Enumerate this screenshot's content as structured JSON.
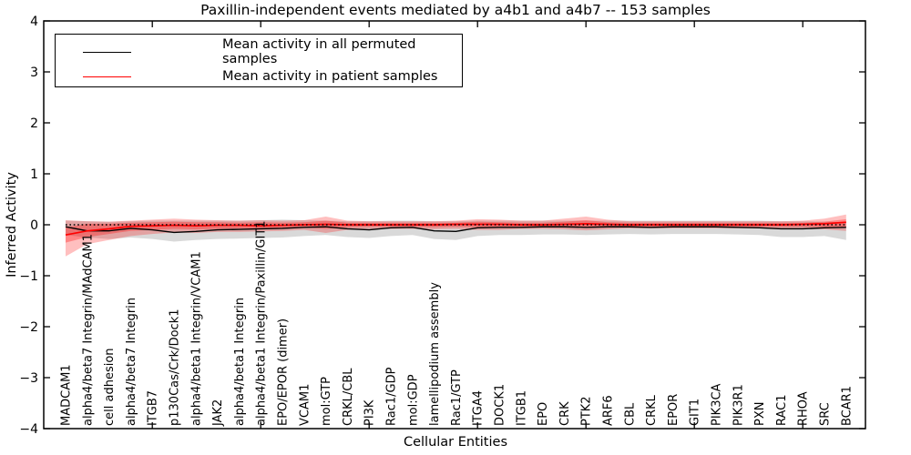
{
  "figure": {
    "title": "Paxillin-independent events mediated by a4b1 and a4b7 -- 153 samples",
    "x_axis_label": "Cellular Entities",
    "y_axis_label": "Inferred Activity"
  },
  "legend": {
    "position": "upper left",
    "items": [
      {
        "label": "Mean activity in all permuted samples",
        "color": "#000000"
      },
      {
        "label": "Mean activity in patient samples",
        "color": "#ff0000"
      }
    ]
  },
  "y_ticks": [
    {
      "label": "4",
      "value": 4
    },
    {
      "label": "3",
      "value": 3
    },
    {
      "label": "2",
      "value": 2
    },
    {
      "label": "1",
      "value": 1
    },
    {
      "label": "0",
      "value": 0
    },
    {
      "label": "−1",
      "value": -1
    },
    {
      "label": "−2",
      "value": -2
    },
    {
      "label": "−3",
      "value": -3
    },
    {
      "label": "−4",
      "value": -4
    }
  ],
  "chart_data": {
    "type": "line",
    "title": "Paxillin-independent events mediated by a4b1 and a4b7 -- 153 samples",
    "xlabel": "Cellular Entities",
    "ylabel": "Inferred Activity",
    "ylim": [
      -4,
      4
    ],
    "grid": false,
    "legend_position": "upper left",
    "zero_reference_line": {
      "value": 0,
      "style": "dotted",
      "color": "#000000"
    },
    "x_major_tick_positions": [
      5,
      10,
      15,
      20,
      25,
      30,
      35
    ],
    "categories": [
      "MADCAM1",
      "alpha4/beta7 Integrin/MAdCAM1",
      "cell adhesion",
      "alpha4/beta7 Integrin",
      "ITGB7",
      "p130Cas/Crk/Dock1",
      "alpha4/beta1 Integrin/VCAM1",
      "JAK2",
      "alpha4/beta1 Integrin",
      "alpha4/beta1 Integrin/Paxillin/GIT1",
      "EPO/EPOR (dimer)",
      "VCAM1",
      "mol:GTP",
      "CRKL/CBL",
      "PI3K",
      "Rac1/GDP",
      "mol:GDP",
      "lamellipodium assembly",
      "Rac1/GTP",
      "ITGA4",
      "DOCK1",
      "ITGB1",
      "EPO",
      "CRK",
      "PTK2",
      "ARF6",
      "CBL",
      "CRKL",
      "EPOR",
      "GIT1",
      "PIK3CA",
      "PIK3R1",
      "PXN",
      "RAC1",
      "RHOA",
      "SRC",
      "BCAR1"
    ],
    "series": [
      {
        "name": "Mean activity in all permuted samples",
        "color": "#000000",
        "width": 1.4,
        "values": [
          -0.04,
          -0.12,
          -0.12,
          -0.07,
          -0.1,
          -0.15,
          -0.13,
          -0.1,
          -0.09,
          -0.08,
          -0.07,
          -0.05,
          -0.04,
          -0.08,
          -0.1,
          -0.06,
          -0.05,
          -0.12,
          -0.13,
          -0.06,
          -0.05,
          -0.05,
          -0.04,
          -0.04,
          -0.05,
          -0.04,
          -0.04,
          -0.05,
          -0.04,
          -0.04,
          -0.04,
          -0.05,
          -0.06,
          -0.08,
          -0.08,
          -0.06,
          -0.05
        ]
      },
      {
        "name": "Mean activity in patient samples",
        "color": "#ff0000",
        "width": 1.7,
        "values": [
          -0.2,
          -0.12,
          -0.08,
          -0.03,
          -0.02,
          -0.01,
          -0.02,
          -0.01,
          -0.01,
          -0.02,
          -0.01,
          0.0,
          0.01,
          0.0,
          0.0,
          0.0,
          0.0,
          0.0,
          0.01,
          0.01,
          0.01,
          0.0,
          0.0,
          0.01,
          0.02,
          0.01,
          0.0,
          0.0,
          0.0,
          0.0,
          0.0,
          0.0,
          0.0,
          0.0,
          0.01,
          0.02,
          0.05
        ]
      }
    ],
    "bands": [
      {
        "name": "permuted-samples-range",
        "color": "#00000026",
        "low": [
          -0.2,
          -0.25,
          -0.28,
          -0.25,
          -0.28,
          -0.33,
          -0.3,
          -0.28,
          -0.27,
          -0.26,
          -0.25,
          -0.22,
          -0.2,
          -0.24,
          -0.26,
          -0.22,
          -0.2,
          -0.28,
          -0.3,
          -0.22,
          -0.2,
          -0.2,
          -0.19,
          -0.19,
          -0.2,
          -0.19,
          -0.18,
          -0.19,
          -0.18,
          -0.18,
          -0.18,
          -0.19,
          -0.2,
          -0.24,
          -0.24,
          -0.22,
          -0.3
        ],
        "high": [
          0.08,
          0.07,
          0.06,
          0.07,
          0.08,
          0.08,
          0.08,
          0.08,
          0.08,
          0.09,
          0.1,
          0.09,
          0.08,
          0.07,
          0.07,
          0.08,
          0.08,
          0.07,
          0.07,
          0.08,
          0.08,
          0.08,
          0.08,
          0.08,
          0.08,
          0.08,
          0.08,
          0.08,
          0.08,
          0.08,
          0.08,
          0.08,
          0.08,
          0.07,
          0.07,
          0.06,
          0.05
        ]
      },
      {
        "name": "patient-samples-range-outer",
        "color": "#ff000040",
        "low": [
          -0.62,
          -0.38,
          -0.3,
          -0.22,
          -0.18,
          -0.15,
          -0.16,
          -0.14,
          -0.14,
          -0.13,
          -0.12,
          -0.1,
          -0.16,
          -0.1,
          -0.08,
          -0.08,
          -0.08,
          -0.09,
          -0.08,
          -0.1,
          -0.1,
          -0.08,
          -0.08,
          -0.09,
          -0.11,
          -0.09,
          -0.07,
          -0.07,
          -0.07,
          -0.07,
          -0.07,
          -0.07,
          -0.07,
          -0.07,
          -0.08,
          -0.09,
          -0.12
        ],
        "high": [
          0.09,
          0.07,
          0.06,
          0.08,
          0.1,
          0.12,
          0.1,
          0.09,
          0.08,
          0.09,
          0.08,
          0.09,
          0.16,
          0.08,
          0.07,
          0.07,
          0.07,
          0.07,
          0.08,
          0.11,
          0.1,
          0.08,
          0.08,
          0.12,
          0.16,
          0.1,
          0.07,
          0.07,
          0.07,
          0.07,
          0.07,
          0.07,
          0.07,
          0.07,
          0.08,
          0.12,
          0.2
        ]
      },
      {
        "name": "patient-samples-range-inner",
        "color": "#ff00004d",
        "low": [
          -0.35,
          -0.24,
          -0.18,
          -0.12,
          -0.1,
          -0.08,
          -0.09,
          -0.08,
          -0.07,
          -0.07,
          -0.06,
          -0.05,
          -0.08,
          -0.05,
          -0.04,
          -0.04,
          -0.04,
          -0.05,
          -0.04,
          -0.05,
          -0.05,
          -0.04,
          -0.04,
          -0.05,
          -0.06,
          -0.05,
          -0.04,
          -0.04,
          -0.04,
          -0.04,
          -0.04,
          -0.04,
          -0.04,
          -0.04,
          -0.04,
          -0.05,
          -0.06
        ],
        "high": [
          -0.05,
          0.02,
          0.02,
          0.04,
          0.05,
          0.06,
          0.05,
          0.05,
          0.04,
          0.05,
          0.04,
          0.05,
          0.08,
          0.04,
          0.04,
          0.04,
          0.04,
          0.04,
          0.04,
          0.06,
          0.05,
          0.04,
          0.04,
          0.06,
          0.09,
          0.05,
          0.04,
          0.04,
          0.04,
          0.04,
          0.04,
          0.04,
          0.04,
          0.04,
          0.04,
          0.06,
          0.11
        ]
      }
    ]
  }
}
